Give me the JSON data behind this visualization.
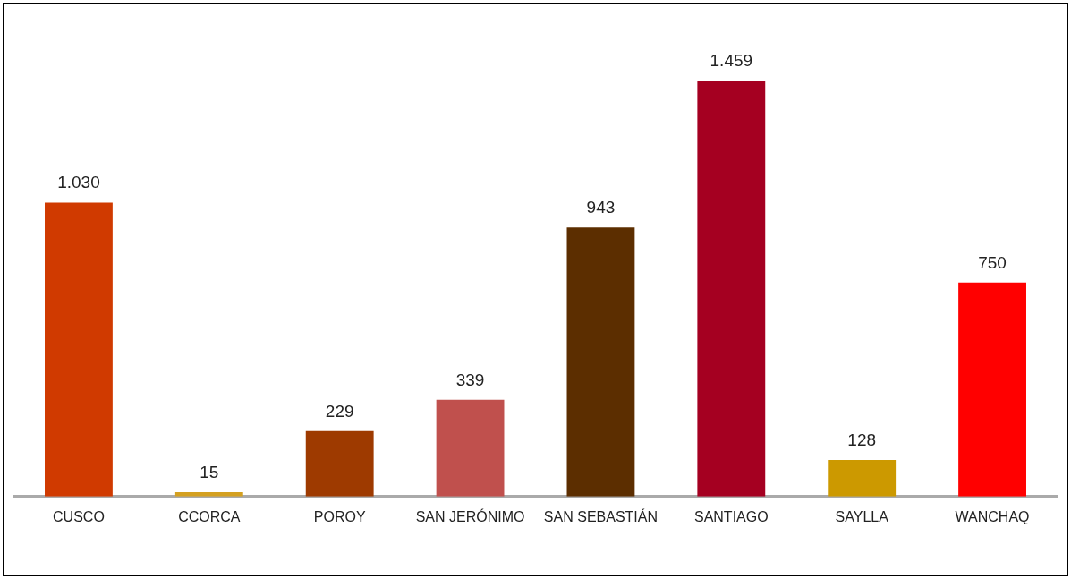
{
  "chart_data": {
    "type": "bar",
    "categories": [
      "CUSCO",
      "CCORCA",
      "POROY",
      "SAN JERÓNIMO",
      "SAN SEBASTIÁN",
      "SANTIAGO",
      "SAYLLA",
      "WANCHAQ"
    ],
    "values": [
      1030,
      15,
      229,
      339,
      943,
      1459,
      128,
      750
    ],
    "value_labels": [
      "1.030",
      "15",
      "229",
      "339",
      "943",
      "1.459",
      "128",
      "750"
    ],
    "colors": [
      "#d03a00",
      "#d4a020",
      "#9e3a00",
      "#c0504d",
      "#5c2e00",
      "#a50021",
      "#cc9900",
      "#ff0000"
    ],
    "tick_labels": "x",
    "grid": false,
    "legend": false
  }
}
